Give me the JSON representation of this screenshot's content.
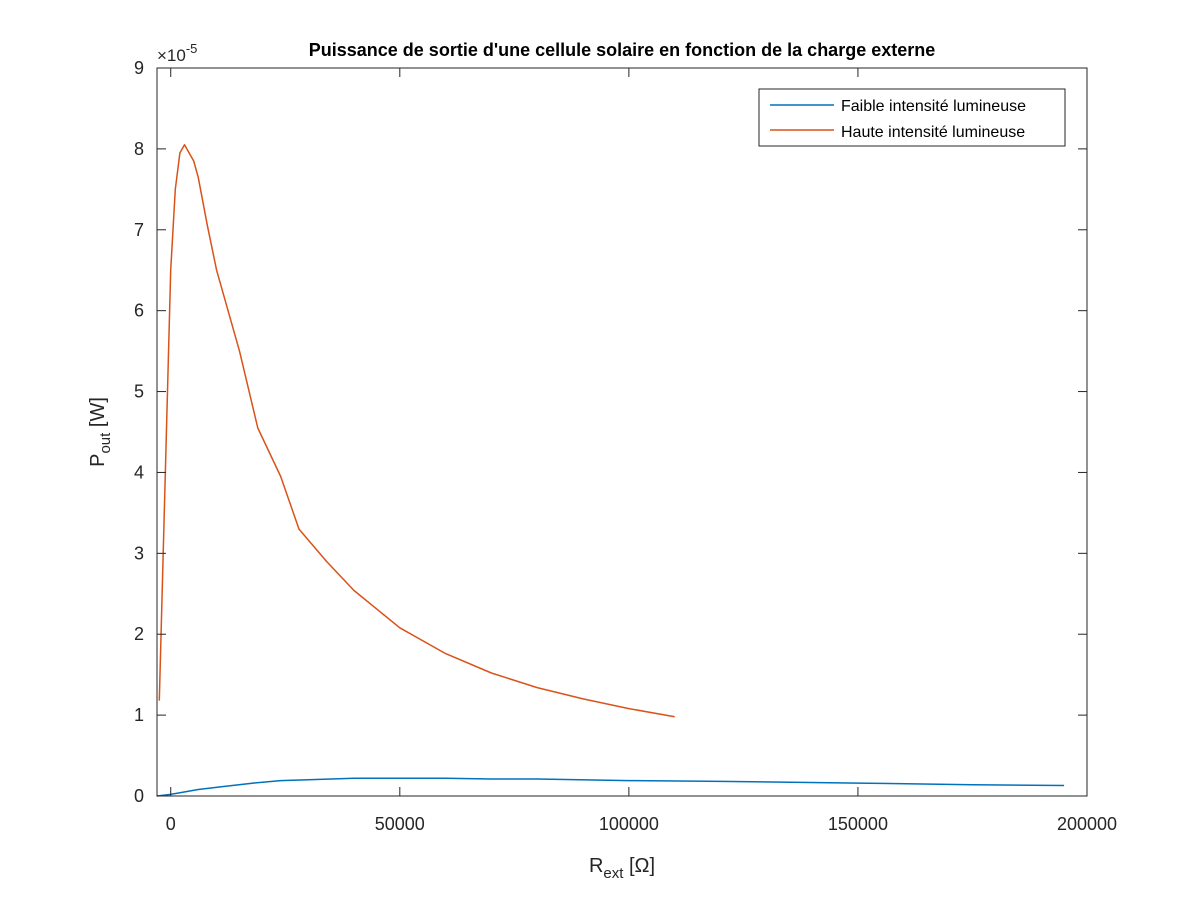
{
  "chart_data": {
    "type": "line",
    "title": "Puissance de sortie d'une cellule solaire en fonction de la charge externe",
    "exponent_label": "×10",
    "exponent_power": "-5",
    "xlabel_main": "R",
    "xlabel_sub": "ext",
    "xlabel_unit": " [Ω]",
    "ylabel_main": "P",
    "ylabel_sub": "out",
    "ylabel_unit": " [W]",
    "xlim": [
      -3000,
      200000
    ],
    "ylim": [
      0,
      9
    ],
    "y_scale_factor": 1e-05,
    "x_ticks": [
      0,
      50000,
      100000,
      150000,
      200000
    ],
    "x_tick_labels": [
      "0",
      "50000",
      "100000",
      "150000",
      "200000"
    ],
    "y_ticks": [
      0,
      1,
      2,
      3,
      4,
      5,
      6,
      7,
      8,
      9
    ],
    "y_tick_labels": [
      "0",
      "1",
      "2",
      "3",
      "4",
      "5",
      "6",
      "7",
      "8",
      "9"
    ],
    "grid": false,
    "legend_position": "top-right",
    "series": [
      {
        "name": "Faible intensité lumineuse",
        "color": "#0072BD",
        "x": [
          -3000,
          0,
          2000,
          6000,
          12000,
          18000,
          24000,
          30000,
          40000,
          50000,
          60000,
          70000,
          80000,
          100000,
          120000,
          150000,
          175000,
          195000
        ],
        "y": [
          0.0,
          0.02,
          0.04,
          0.08,
          0.12,
          0.16,
          0.19,
          0.2,
          0.22,
          0.22,
          0.22,
          0.21,
          0.21,
          0.19,
          0.18,
          0.16,
          0.14,
          0.13
        ]
      },
      {
        "name": "Haute intensité lumineuse",
        "color": "#D95319",
        "x": [
          -2500,
          -1000,
          0,
          1000,
          2000,
          3000,
          4000,
          5000,
          6000,
          8000,
          10000,
          15000,
          19000,
          24000,
          28000,
          34000,
          40000,
          50000,
          60000,
          70000,
          80000,
          90000,
          100000,
          110000
        ],
        "y": [
          1.18,
          4.4,
          6.5,
          7.5,
          7.95,
          8.05,
          7.95,
          7.85,
          7.65,
          7.05,
          6.5,
          5.5,
          4.55,
          3.95,
          3.3,
          2.9,
          2.54,
          2.08,
          1.76,
          1.52,
          1.34,
          1.2,
          1.08,
          0.98
        ]
      }
    ]
  }
}
